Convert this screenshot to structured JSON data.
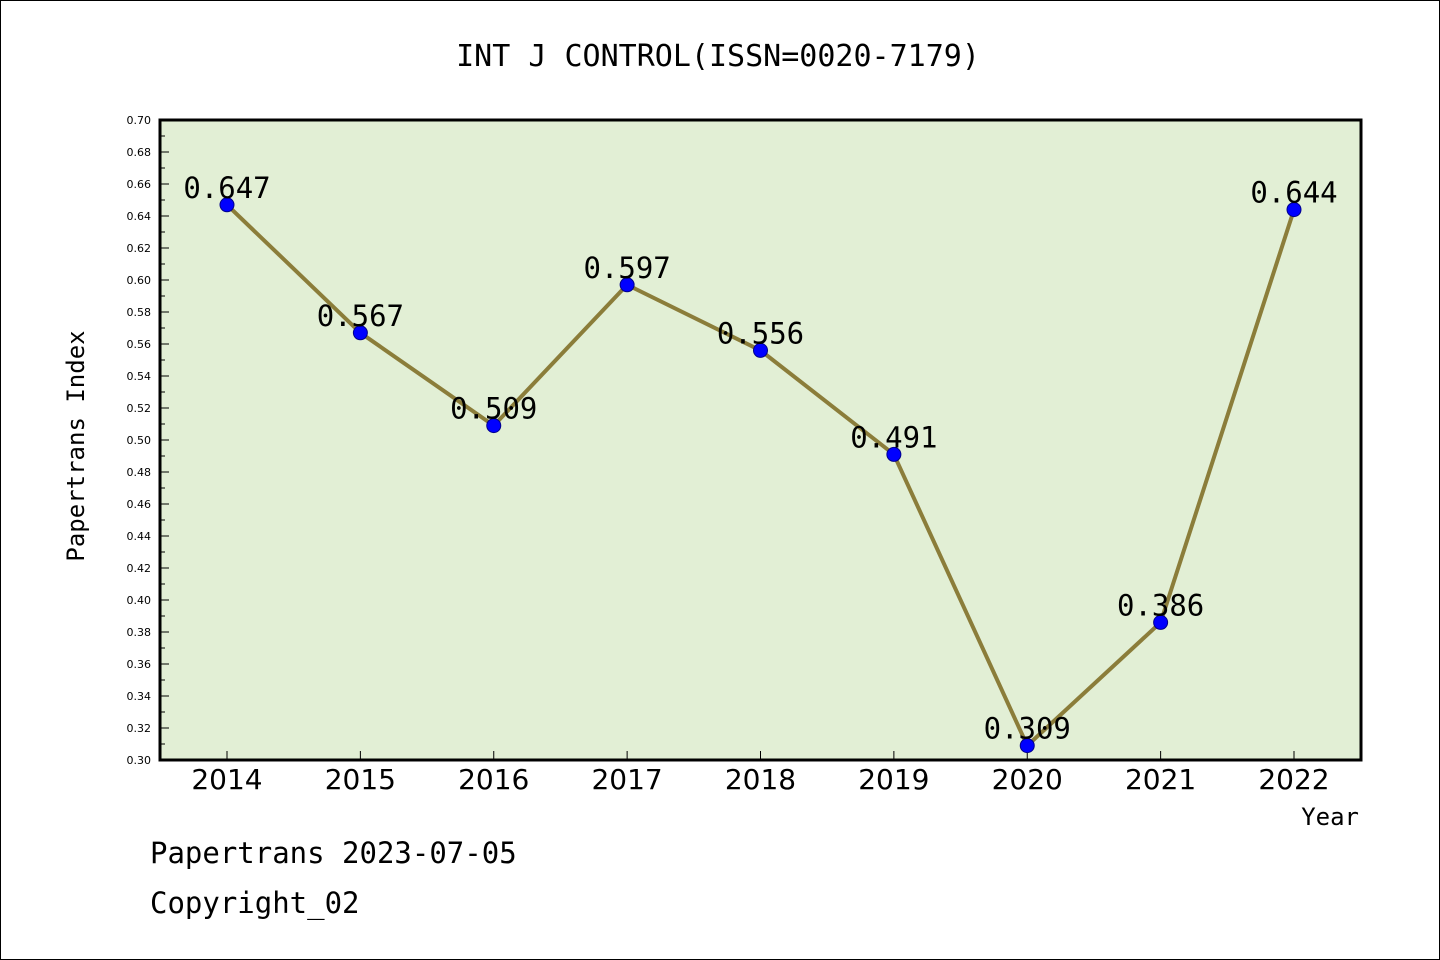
{
  "chart_data": {
    "type": "line",
    "title": "INT J CONTROL(ISSN=0020-7179)",
    "xlabel": "Year",
    "ylabel": "Papertrans Index",
    "categories": [
      "2014",
      "2015",
      "2016",
      "2017",
      "2018",
      "2019",
      "2020",
      "2021",
      "2022"
    ],
    "values": [
      0.647,
      0.567,
      0.509,
      0.597,
      0.556,
      0.491,
      0.309,
      0.386,
      0.644
    ],
    "data_labels": [
      "0.647",
      "0.567",
      "0.509",
      "0.597",
      "0.556",
      "0.491",
      "0.309",
      "0.386",
      "0.644"
    ],
    "ylim": [
      0.3,
      0.7
    ],
    "yticks": [
      "0.30",
      "0.32",
      "0.34",
      "0.36",
      "0.38",
      "0.40",
      "0.42",
      "0.44",
      "0.46",
      "0.48",
      "0.50",
      "0.52",
      "0.54",
      "0.56",
      "0.58",
      "0.60",
      "0.62",
      "0.64",
      "0.66",
      "0.68",
      "0.70"
    ],
    "grid": false,
    "colors": {
      "plot_background": "#e2efd5",
      "line": "#8b7d3a",
      "marker": "#0000ff",
      "marker_edge": "#00008b"
    }
  },
  "footer": {
    "line1": "Papertrans 2023-07-05",
    "line2": "Copyright_02"
  }
}
